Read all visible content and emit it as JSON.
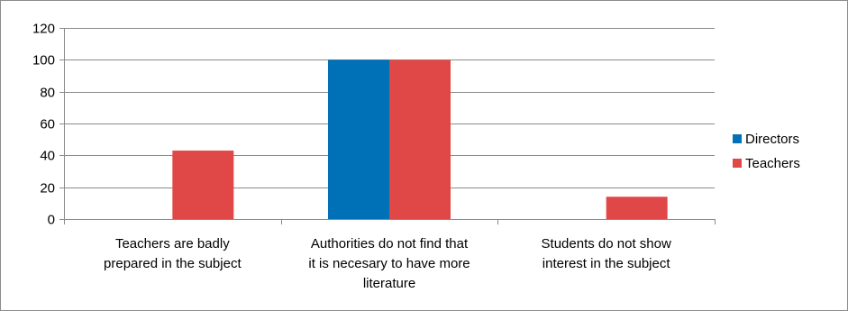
{
  "chart_data": {
    "type": "bar",
    "categories": [
      [
        "Teachers are badly",
        "prepared in the subject"
      ],
      [
        "Authorities do not find that",
        "it is necesary to have more",
        "literature"
      ],
      [
        "Students do not show",
        "interest in the subject"
      ]
    ],
    "series": [
      {
        "name": "Directors",
        "color": "#0070b7",
        "values": [
          0,
          100,
          0
        ]
      },
      {
        "name": "Teachers",
        "color": "#e04848",
        "values": [
          43,
          100,
          14
        ]
      }
    ],
    "ylim": [
      0,
      120
    ],
    "yticks": [
      0,
      20,
      40,
      60,
      80,
      100,
      120
    ],
    "grid": true,
    "legend_position": "right",
    "title": "",
    "xlabel": "",
    "ylabel": ""
  }
}
